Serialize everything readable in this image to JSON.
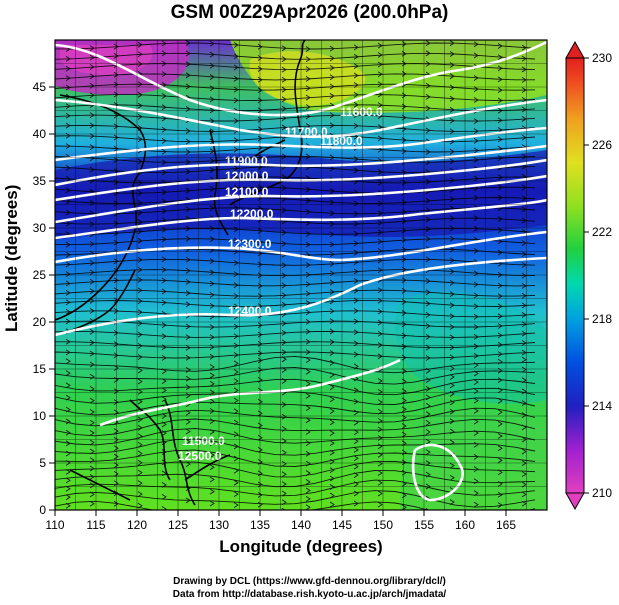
{
  "title": "GSM 00Z29Apr2026 (200.0hPa)",
  "axes": {
    "xlabel": "Longitude (degrees)",
    "ylabel": "Latitude  (degrees)",
    "x_ticks": [
      "110",
      "115",
      "120",
      "125",
      "130",
      "135",
      "140",
      "145",
      "150",
      "155",
      "160",
      "165"
    ],
    "y_ticks": [
      "0",
      "5",
      "10",
      "15",
      "20",
      "25",
      "30",
      "35",
      "40",
      "45"
    ],
    "xlim": [
      110,
      170
    ],
    "ylim": [
      0,
      50
    ]
  },
  "colorbar": {
    "labels": [
      "210",
      "214",
      "218",
      "222",
      "226",
      "230"
    ],
    "min": 210,
    "max": 230,
    "colors": [
      "#e040c0",
      "#a020d0",
      "#2020c0",
      "#0060e0",
      "#00b0e0",
      "#00d8a0",
      "#20d040",
      "#90e020",
      "#e0e020",
      "#f0a020",
      "#f05020",
      "#e02020"
    ]
  },
  "contours": [
    {
      "label": "11500.0"
    },
    {
      "label": "11600.0"
    },
    {
      "label": "11700.0"
    },
    {
      "label": "11800.0"
    },
    {
      "label": "11900.0"
    },
    {
      "label": "12000.0"
    },
    {
      "label": "12100.0"
    },
    {
      "label": "12200.0"
    },
    {
      "label": "12300.0"
    },
    {
      "label": "12400.0"
    },
    {
      "label": "12500.0"
    }
  ],
  "credits": [
    "Drawing by DCL (https://www.gfd-dennou.org/library/dcl/)",
    "Data from http://database.rish.kyoto-u.ac.jp/arch/jmadata/"
  ]
}
